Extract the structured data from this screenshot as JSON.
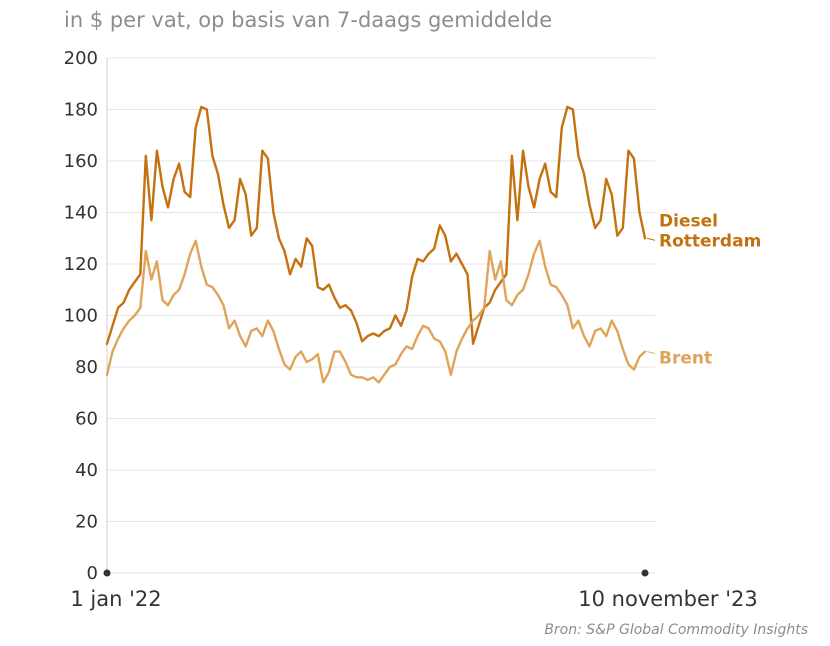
{
  "chart_data": {
    "type": "line",
    "title": "",
    "subtitle": "in $ per vat, op basis van 7-daags gemiddelde",
    "ylim": [
      0,
      200
    ],
    "yticks": [
      0,
      20,
      40,
      60,
      80,
      100,
      120,
      140,
      160,
      180,
      200
    ],
    "xlabel": "",
    "ylabel": "",
    "x_start_label": "1 jan '22",
    "x_end_label": "10 november '23",
    "grid": true,
    "source": "Bron: S&P Global Commodity Insights",
    "x": [
      0,
      1,
      2,
      3,
      4,
      5,
      6,
      7,
      8,
      9,
      10,
      11,
      12,
      13,
      14,
      15,
      16,
      17,
      18,
      19,
      20,
      21,
      22,
      23,
      24,
      25,
      26,
      27,
      28,
      29,
      30,
      31,
      32,
      33,
      34,
      35,
      36,
      37,
      38,
      39,
      40,
      41,
      42,
      43,
      44,
      45,
      46,
      47,
      48,
      49,
      50,
      51,
      52,
      53,
      54,
      55,
      56,
      57,
      58,
      59,
      60,
      61,
      62,
      63,
      64,
      65,
      66,
      67,
      68,
      69,
      70,
      71,
      72,
      73,
      74,
      75,
      76,
      77,
      78,
      79,
      80,
      81,
      82,
      83,
      84,
      85,
      86,
      87,
      88,
      89,
      90,
      91,
      92,
      93,
      94,
      95,
      96,
      97
    ],
    "series": [
      {
        "name": "Diesel Rotterdam",
        "label_lines": [
          "Diesel",
          "Rotterdam"
        ],
        "color": "#c4710f",
        "values": [
          89,
          96,
          103,
          105,
          110,
          113,
          116,
          162,
          137,
          164,
          150,
          142,
          153,
          159,
          148,
          146,
          173,
          181,
          180,
          162,
          155,
          143,
          134,
          137,
          153,
          147,
          131,
          134,
          164,
          161,
          140,
          130,
          125,
          116,
          122,
          119,
          130,
          127,
          111,
          110,
          112,
          107,
          103,
          104,
          102,
          97,
          90,
          92,
          93,
          92,
          94,
          95,
          100,
          96,
          102,
          115,
          122,
          121,
          124,
          126,
          135,
          131,
          121,
          124,
          120,
          116,
          89,
          96,
          103,
          105,
          110,
          113,
          116,
          162,
          137,
          164,
          150,
          142,
          153,
          159,
          148,
          146,
          173,
          181,
          180,
          162,
          155,
          143,
          134,
          137,
          153,
          147,
          131,
          134,
          164,
          161,
          140,
          130
        ]
      },
      {
        "name": "Brent",
        "label_lines": [
          "Brent"
        ],
        "color": "#e0a35a",
        "values": [
          77,
          86,
          91,
          95,
          98,
          100,
          103,
          125,
          114,
          121,
          106,
          104,
          108,
          110,
          116,
          124,
          129,
          119,
          112,
          111,
          108,
          104,
          95,
          98,
          92,
          88,
          94,
          95,
          92,
          98,
          94,
          87,
          81,
          79,
          84,
          86,
          82,
          83,
          85,
          74,
          78,
          86,
          86,
          82,
          77,
          76,
          76,
          75,
          76,
          74,
          77,
          80,
          81,
          85,
          88,
          87,
          92,
          96,
          95,
          91,
          90,
          86,
          77,
          86,
          91,
          95,
          98,
          100,
          103,
          125,
          114,
          121,
          106,
          104,
          108,
          110,
          116,
          124,
          129,
          119,
          112,
          111,
          108,
          104,
          95,
          98,
          92,
          88,
          94,
          95,
          92,
          98,
          94,
          87,
          81,
          79,
          84,
          86
        ]
      }
    ]
  }
}
